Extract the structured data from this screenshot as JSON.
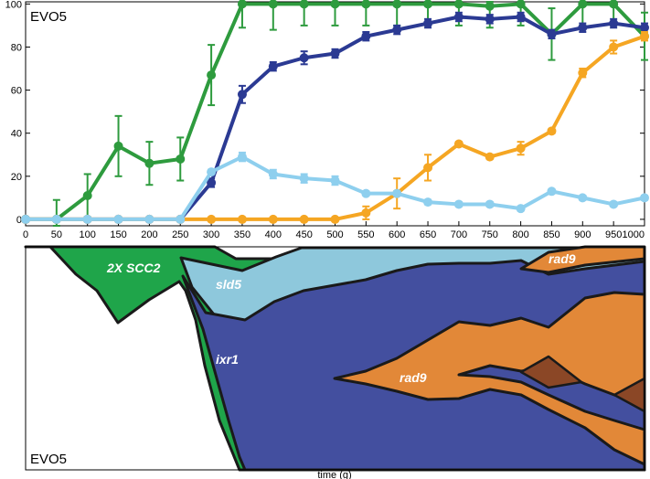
{
  "chart_data": [
    {
      "type": "line",
      "panel_label": "EVO5",
      "x": [
        0,
        50,
        100,
        150,
        200,
        250,
        300,
        350,
        400,
        450,
        500,
        550,
        600,
        650,
        700,
        750,
        800,
        850,
        900,
        950,
        1000
      ],
      "x_ticks": [
        "0",
        "50",
        "100",
        "150",
        "200",
        "250",
        "300",
        "350",
        "400",
        "450",
        "500",
        "550",
        "600",
        "650",
        "700",
        "750",
        "800",
        "850",
        "900",
        "950",
        "1000"
      ],
      "y_ticks": [
        "0",
        "20",
        "40",
        "60",
        "80",
        "100"
      ],
      "xlim": [
        0,
        1000
      ],
      "ylim": [
        -3,
        101
      ],
      "grid": false,
      "series": [
        {
          "color": "#2e9b3e",
          "values": [
            0,
            0,
            11,
            34,
            26,
            28,
            67,
            100,
            100,
            100,
            100,
            100,
            100,
            100,
            100,
            99,
            100,
            86,
            100,
            100,
            85
          ],
          "errors": [
            0,
            9,
            10,
            14,
            10,
            10,
            14,
            11,
            12,
            10,
            10,
            10,
            10,
            10,
            10,
            10,
            10,
            12,
            10,
            10,
            11
          ]
        },
        {
          "color": "#2b3a93",
          "values": [
            0,
            0,
            0,
            0,
            0,
            0,
            17,
            58,
            71,
            75,
            77,
            85,
            88,
            91,
            94,
            93,
            94,
            86,
            89,
            91,
            89
          ],
          "errors": [
            0,
            0,
            0,
            0,
            0,
            0,
            2,
            4,
            2,
            3,
            2,
            2,
            2,
            2,
            2,
            2,
            2,
            2,
            2,
            2,
            2
          ]
        },
        {
          "color": "#f5a623",
          "values": [
            0,
            0,
            0,
            0,
            0,
            0,
            0,
            0,
            0,
            0,
            0,
            3,
            12,
            24,
            35,
            29,
            33,
            41,
            68,
            80,
            85
          ],
          "errors": [
            0,
            0,
            0,
            0,
            0,
            0,
            0,
            0,
            0,
            0,
            0,
            3,
            7,
            6,
            1,
            1,
            3,
            1,
            2,
            3,
            2
          ]
        },
        {
          "color": "#8ecfee",
          "values": [
            0,
            0,
            0,
            0,
            0,
            0,
            22,
            29,
            21,
            19,
            18,
            12,
            12,
            8,
            7,
            7,
            5,
            13,
            10,
            7,
            10
          ],
          "errors": [
            0,
            0,
            0,
            0,
            0,
            0,
            1,
            2,
            2,
            2,
            2,
            1,
            1,
            1,
            1,
            1,
            1,
            1,
            1,
            1,
            1
          ]
        }
      ]
    },
    {
      "type": "area",
      "subtype": "muller",
      "panel_label": "EVO5",
      "xlabel": "time (g)",
      "clones": [
        {
          "label": "2X SCC2",
          "color": "#1fa54a"
        },
        {
          "label": "sld5",
          "color": "#8ec8dc"
        },
        {
          "label": "ixr1",
          "color": "#434f9f"
        },
        {
          "label": "rad9",
          "color": "#e28838"
        },
        {
          "label": "rad9",
          "color": "#e28838"
        },
        {
          "label": "",
          "color": "#8b4726"
        }
      ]
    }
  ]
}
